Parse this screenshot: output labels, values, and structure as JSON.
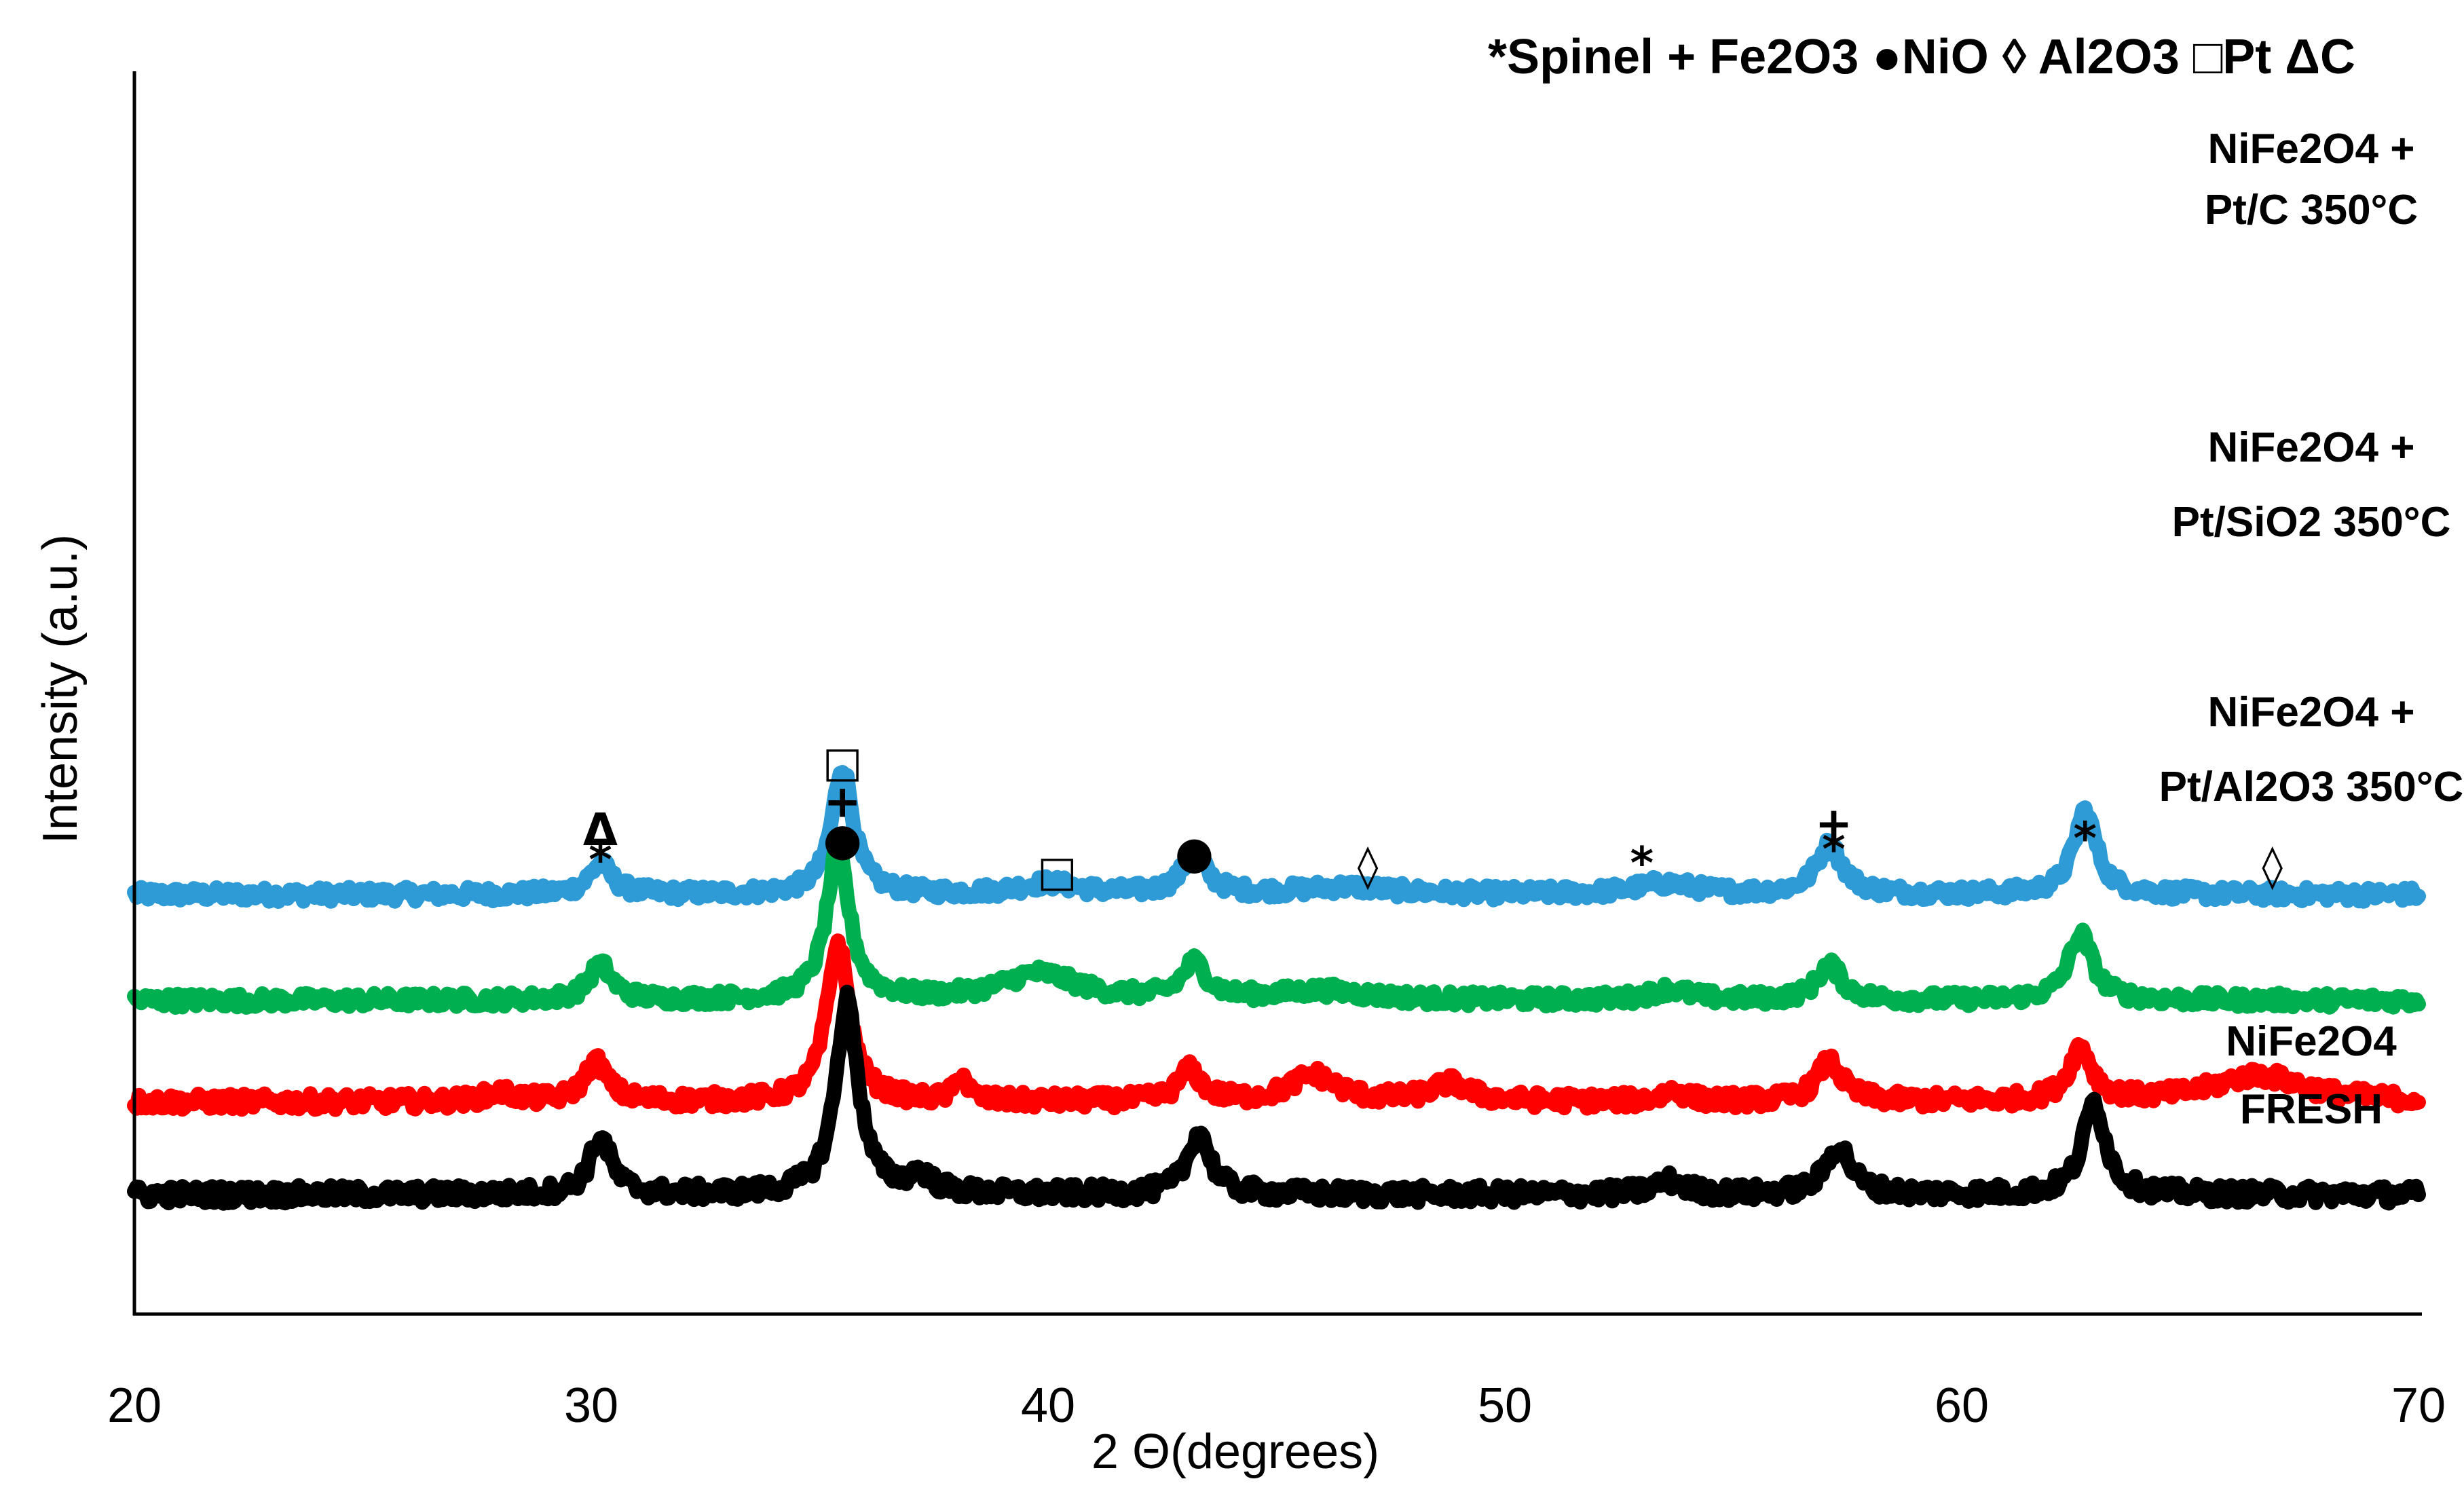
{
  "chart_data": {
    "type": "line",
    "title": "",
    "xlabel": "2 Θ(degrees)",
    "ylabel": "Intensity (a.u.)",
    "xlim": [
      20,
      70
    ],
    "x_ticks": [
      20,
      30,
      40,
      50,
      60,
      70
    ],
    "y_ticks": [],
    "grid": false,
    "legend": {
      "placement": "top-right",
      "text": "*Spinel + Fe2O3 ●NiO ◊ Al2O3 □Pt  ΔC"
    },
    "series": [
      {
        "name": "NiFe2O4 + Pt/C 350°C",
        "label_lines": [
          "NiFe2O4 +",
          "Pt/C 350°C"
        ],
        "color": "#2E9BD6",
        "baseline": 3.4,
        "noise": 0.08,
        "peaks": [
          {
            "x": 30.2,
            "h": 0.35,
            "w": 0.3
          },
          {
            "x": 35.5,
            "h": 1.45,
            "w": 0.28
          },
          {
            "x": 40.0,
            "h": 0.12,
            "w": 0.8
          },
          {
            "x": 43.2,
            "h": 0.45,
            "w": 0.32
          },
          {
            "x": 46.5,
            "h": 0.08,
            "w": 1.2
          },
          {
            "x": 53.5,
            "h": 0.12,
            "w": 0.8
          },
          {
            "x": 57.1,
            "h": 0.55,
            "w": 0.35
          },
          {
            "x": 62.7,
            "h": 0.95,
            "w": 0.3
          }
        ]
      },
      {
        "name": "NiFe2O4 + Pt/SiO2 350°C",
        "label_lines": [
          "NiFe2O4 +",
          "Pt/SiO2 350°C"
        ],
        "color": "#00B050",
        "baseline": 2.2,
        "noise": 0.08,
        "peaks": [
          {
            "x": 30.2,
            "h": 0.4,
            "w": 0.3
          },
          {
            "x": 35.4,
            "h": 1.7,
            "w": 0.3
          },
          {
            "x": 39.8,
            "h": 0.3,
            "w": 1.0
          },
          {
            "x": 43.2,
            "h": 0.4,
            "w": 0.32
          },
          {
            "x": 46.0,
            "h": 0.1,
            "w": 1.2
          },
          {
            "x": 53.6,
            "h": 0.12,
            "w": 0.5
          },
          {
            "x": 57.1,
            "h": 0.4,
            "w": 0.32
          },
          {
            "x": 62.6,
            "h": 0.75,
            "w": 0.32
          }
        ]
      },
      {
        "name": "NiFe2O4 + Pt/Al2O3 350°C",
        "label_lines": [
          "NiFe2O4 +",
          "Pt/Al2O3 350°C"
        ],
        "color": "#FF0000",
        "baseline": 1.05,
        "noise": 0.09,
        "peaks": [
          {
            "x": 28.0,
            "h": 0.1,
            "w": 0.4
          },
          {
            "x": 30.1,
            "h": 0.45,
            "w": 0.3
          },
          {
            "x": 35.4,
            "h": 1.8,
            "w": 0.3
          },
          {
            "x": 38.1,
            "h": 0.3,
            "w": 0.15
          },
          {
            "x": 43.1,
            "h": 0.35,
            "w": 0.3
          },
          {
            "x": 45.8,
            "h": 0.3,
            "w": 0.6
          },
          {
            "x": 48.8,
            "h": 0.2,
            "w": 0.5
          },
          {
            "x": 53.7,
            "h": 0.12,
            "w": 0.3
          },
          {
            "x": 57.1,
            "h": 0.45,
            "w": 0.33
          },
          {
            "x": 62.6,
            "h": 0.6,
            "w": 0.3
          },
          {
            "x": 66.5,
            "h": 0.3,
            "w": 1.2
          }
        ]
      },
      {
        "name": "NiFe2O4 FRESH",
        "label_lines": [
          "NiFe2O4",
          "FRESH"
        ],
        "color": "#000000",
        "baseline": 0.0,
        "noise": 0.1,
        "peaks": [
          {
            "x": 30.2,
            "h": 0.65,
            "w": 0.28
          },
          {
            "x": 35.6,
            "h": 2.2,
            "w": 0.3
          },
          {
            "x": 37.2,
            "h": 0.2,
            "w": 0.3
          },
          {
            "x": 43.3,
            "h": 0.7,
            "w": 0.3
          },
          {
            "x": 53.6,
            "h": 0.15,
            "w": 0.4
          },
          {
            "x": 57.3,
            "h": 0.55,
            "w": 0.33
          },
          {
            "x": 62.9,
            "h": 1.05,
            "w": 0.3
          }
        ]
      }
    ],
    "annotations": [
      {
        "symbol": "□",
        "x": 35.5,
        "y": 4.74
      },
      {
        "symbol": "+",
        "x": 35.5,
        "y": 4.28
      },
      {
        "symbol": "●",
        "x": 35.5,
        "y": 3.85
      },
      {
        "symbol": "Δ",
        "x": 30.2,
        "y": 3.96
      },
      {
        "symbol": "*",
        "x": 30.2,
        "y": 3.62
      },
      {
        "symbol": "□",
        "x": 40.2,
        "y": 3.5
      },
      {
        "symbol": "●",
        "x": 43.2,
        "y": 3.7
      },
      {
        "symbol": "◊",
        "x": 47.0,
        "y": 3.56
      },
      {
        "symbol": "*",
        "x": 53.0,
        "y": 3.58
      },
      {
        "symbol": "+",
        "x": 57.2,
        "y": 4.03
      },
      {
        "symbol": "*",
        "x": 57.2,
        "y": 3.74
      },
      {
        "symbol": "*",
        "x": 62.7,
        "y": 3.86
      },
      {
        "symbol": "◊",
        "x": 66.8,
        "y": 3.56
      }
    ]
  }
}
